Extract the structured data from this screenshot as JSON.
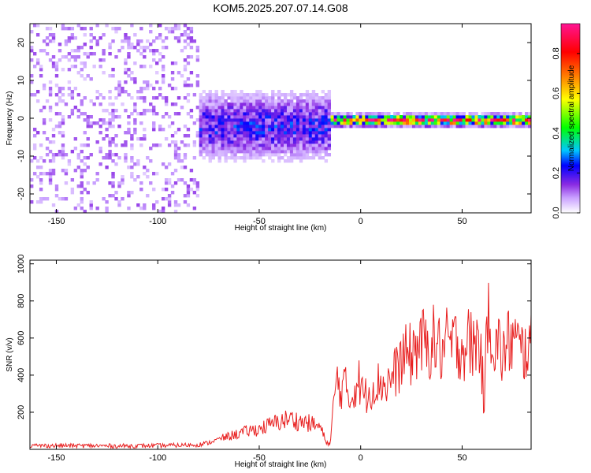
{
  "title": "KOM5.2025.207.07.14.G08",
  "chart_data": [
    {
      "type": "heatmap",
      "xlabel": "Height of straight line (km)",
      "ylabel": "Frequency (Hz)",
      "xlim": [
        -163,
        84
      ],
      "ylim": [
        -25,
        25
      ],
      "xticks": [
        -150,
        -100,
        -50,
        0,
        50
      ],
      "yticks": [
        -20,
        -10,
        0,
        10,
        20
      ],
      "colorbar": {
        "label": "Normalized spectral amplitude",
        "range": [
          0,
          0.95
        ],
        "ticks": [
          "0.0",
          "0.2",
          "0.4",
          "0.6",
          "0.8"
        ],
        "tick_values": [
          0,
          0.2,
          0.4,
          0.6,
          0.8
        ],
        "colors": [
          "#ffffff",
          "#c9a0ff",
          "#8a2be2",
          "#0000ff",
          "#00c8ff",
          "#00ff00",
          "#ffff00",
          "#ff8000",
          "#ff0000",
          "#ff1493"
        ]
      },
      "colorscale_stops": [
        0,
        0.08,
        0.15,
        0.25,
        0.33,
        0.45,
        0.6,
        0.72,
        0.85,
        1
      ],
      "features": [
        {
          "x": [
            -163,
            -80
          ],
          "freq_center": 0,
          "freq_spread": 24,
          "amplitude": 0.1
        },
        {
          "x": [
            -80,
            -15
          ],
          "freq_center": -2,
          "freq_spread": 5,
          "amplitude": 0.22
        },
        {
          "x": [
            -15,
            84
          ],
          "freq_center": -0.5,
          "freq_spread": 0.8,
          "amplitude": 0.85
        }
      ]
    },
    {
      "type": "line",
      "xlabel": "Height of straight line (km)",
      "ylabel": "SNR (v/v)",
      "xlim": [
        -163,
        84
      ],
      "ylim": [
        0,
        1020
      ],
      "xticks": [
        -150,
        -100,
        -50,
        0,
        50
      ],
      "yticks": [
        200,
        400,
        600,
        800,
        1000
      ],
      "series": [
        {
          "color": "#e82020",
          "x": [
            -163,
            -140,
            -120,
            -100,
            -90,
            -80,
            -75,
            -70,
            -65,
            -60,
            -55,
            -50,
            -45,
            -40,
            -35,
            -30,
            -25,
            -20,
            -17,
            -15,
            -13,
            -12,
            -10,
            -8,
            -5,
            -3,
            -1,
            0,
            3,
            5,
            8,
            10,
            12,
            15,
            18,
            20,
            22,
            25,
            28,
            30,
            33,
            35,
            38,
            40,
            43,
            45,
            48,
            50,
            53,
            55,
            58,
            59,
            60,
            61,
            62,
            63,
            64,
            65,
            66,
            68,
            70,
            72,
            75,
            78,
            80,
            82,
            84
          ],
          "y": [
            20,
            20,
            18,
            20,
            22,
            25,
            35,
            55,
            70,
            85,
            100,
            110,
            130,
            150,
            165,
            150,
            140,
            120,
            40,
            25,
            280,
            380,
            320,
            350,
            260,
            330,
            380,
            320,
            290,
            330,
            350,
            370,
            340,
            380,
            430,
            480,
            500,
            510,
            560,
            580,
            540,
            590,
            560,
            520,
            580,
            560,
            580,
            540,
            580,
            560,
            590,
            560,
            400,
            180,
            600,
            900,
            700,
            580,
            540,
            560,
            500,
            560,
            600,
            540,
            520,
            560,
            540
          ]
        }
      ]
    }
  ]
}
